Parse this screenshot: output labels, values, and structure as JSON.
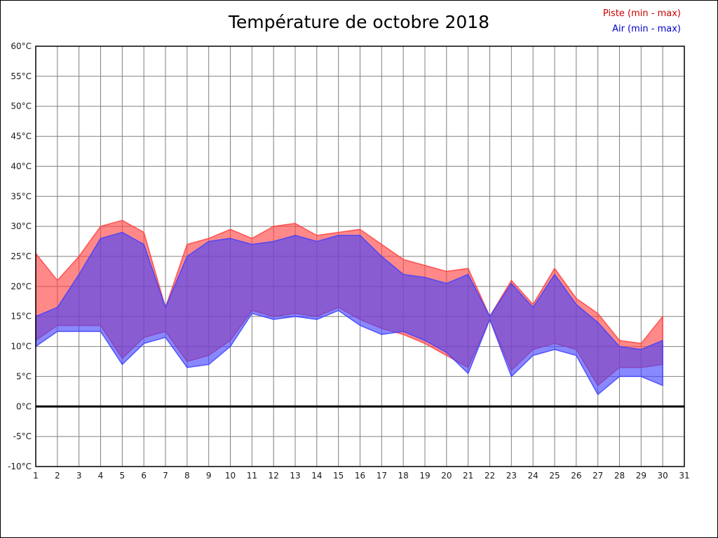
{
  "title": "Température de octobre 2018",
  "legend": {
    "piste": {
      "label": "Piste (min - max)",
      "color": "#cc0000"
    },
    "air": {
      "label": "Air (min - max)",
      "color": "#0000cc"
    }
  },
  "chart_data": {
    "type": "area",
    "title": "Température de octobre 2018",
    "xlabel": "",
    "ylabel": "",
    "xlim": [
      1,
      31
    ],
    "ylim": [
      -10,
      60
    ],
    "grid": true,
    "zero_line_at": 0,
    "x_ticks": [
      "1",
      "2",
      "3",
      "4",
      "5",
      "6",
      "7",
      "8",
      "9",
      "10",
      "11",
      "12",
      "13",
      "14",
      "15",
      "16",
      "17",
      "18",
      "19",
      "20",
      "21",
      "22",
      "23",
      "24",
      "25",
      "26",
      "27",
      "28",
      "29",
      "30",
      "31"
    ],
    "y_ticks": [
      "60°C",
      "55°C",
      "50°C",
      "45°C",
      "40°C",
      "35°C",
      "30°C",
      "25°C",
      "20°C",
      "15°C",
      "10°C",
      "5°C",
      "0°C",
      "-5°C",
      "-10°C"
    ],
    "days": [
      1,
      2,
      3,
      4,
      5,
      6,
      7,
      8,
      9,
      10,
      11,
      12,
      13,
      14,
      15,
      16,
      17,
      18,
      19,
      20,
      21,
      22,
      23,
      24,
      25,
      26,
      27,
      28,
      29,
      30
    ],
    "series": [
      {
        "name": "Piste (min - max)",
        "band_color": "#ff4040",
        "max": [
          25.5,
          21,
          25,
          30,
          31,
          29,
          16.5,
          27,
          28,
          29.5,
          28,
          30,
          30.5,
          28.5,
          29,
          29.5,
          27,
          24.5,
          23.5,
          22.5,
          23,
          15,
          21,
          17,
          23,
          18,
          15.5,
          11,
          10.5,
          15
        ],
        "min": [
          11,
          13.5,
          13.5,
          13.5,
          8,
          11.5,
          12.5,
          7.5,
          8.5,
          11,
          16,
          15,
          15.5,
          15,
          16.5,
          14.5,
          13,
          12,
          10.5,
          8.5,
          6.5,
          14.5,
          6,
          9.5,
          10.5,
          9.5,
          3.5,
          6.5,
          6.5,
          7
        ]
      },
      {
        "name": "Air (min - max)",
        "band_color": "#4040ff",
        "max": [
          15,
          16.5,
          22,
          28,
          29,
          27,
          16.5,
          25,
          27.5,
          28,
          27,
          27.5,
          28.5,
          27.5,
          28.5,
          28.5,
          25,
          22,
          21.5,
          20.5,
          22,
          15,
          20.5,
          16.5,
          22,
          17,
          14,
          10,
          9.5,
          11
        ],
        "min": [
          10,
          12.5,
          12.5,
          12.5,
          7,
          10.5,
          11.5,
          6.5,
          7,
          10,
          15.5,
          14.5,
          15,
          14.5,
          16,
          13.5,
          12,
          12.5,
          11,
          9,
          5.5,
          14.5,
          5,
          8.5,
          9.5,
          8.5,
          2,
          5,
          5,
          3.5
        ]
      }
    ]
  }
}
